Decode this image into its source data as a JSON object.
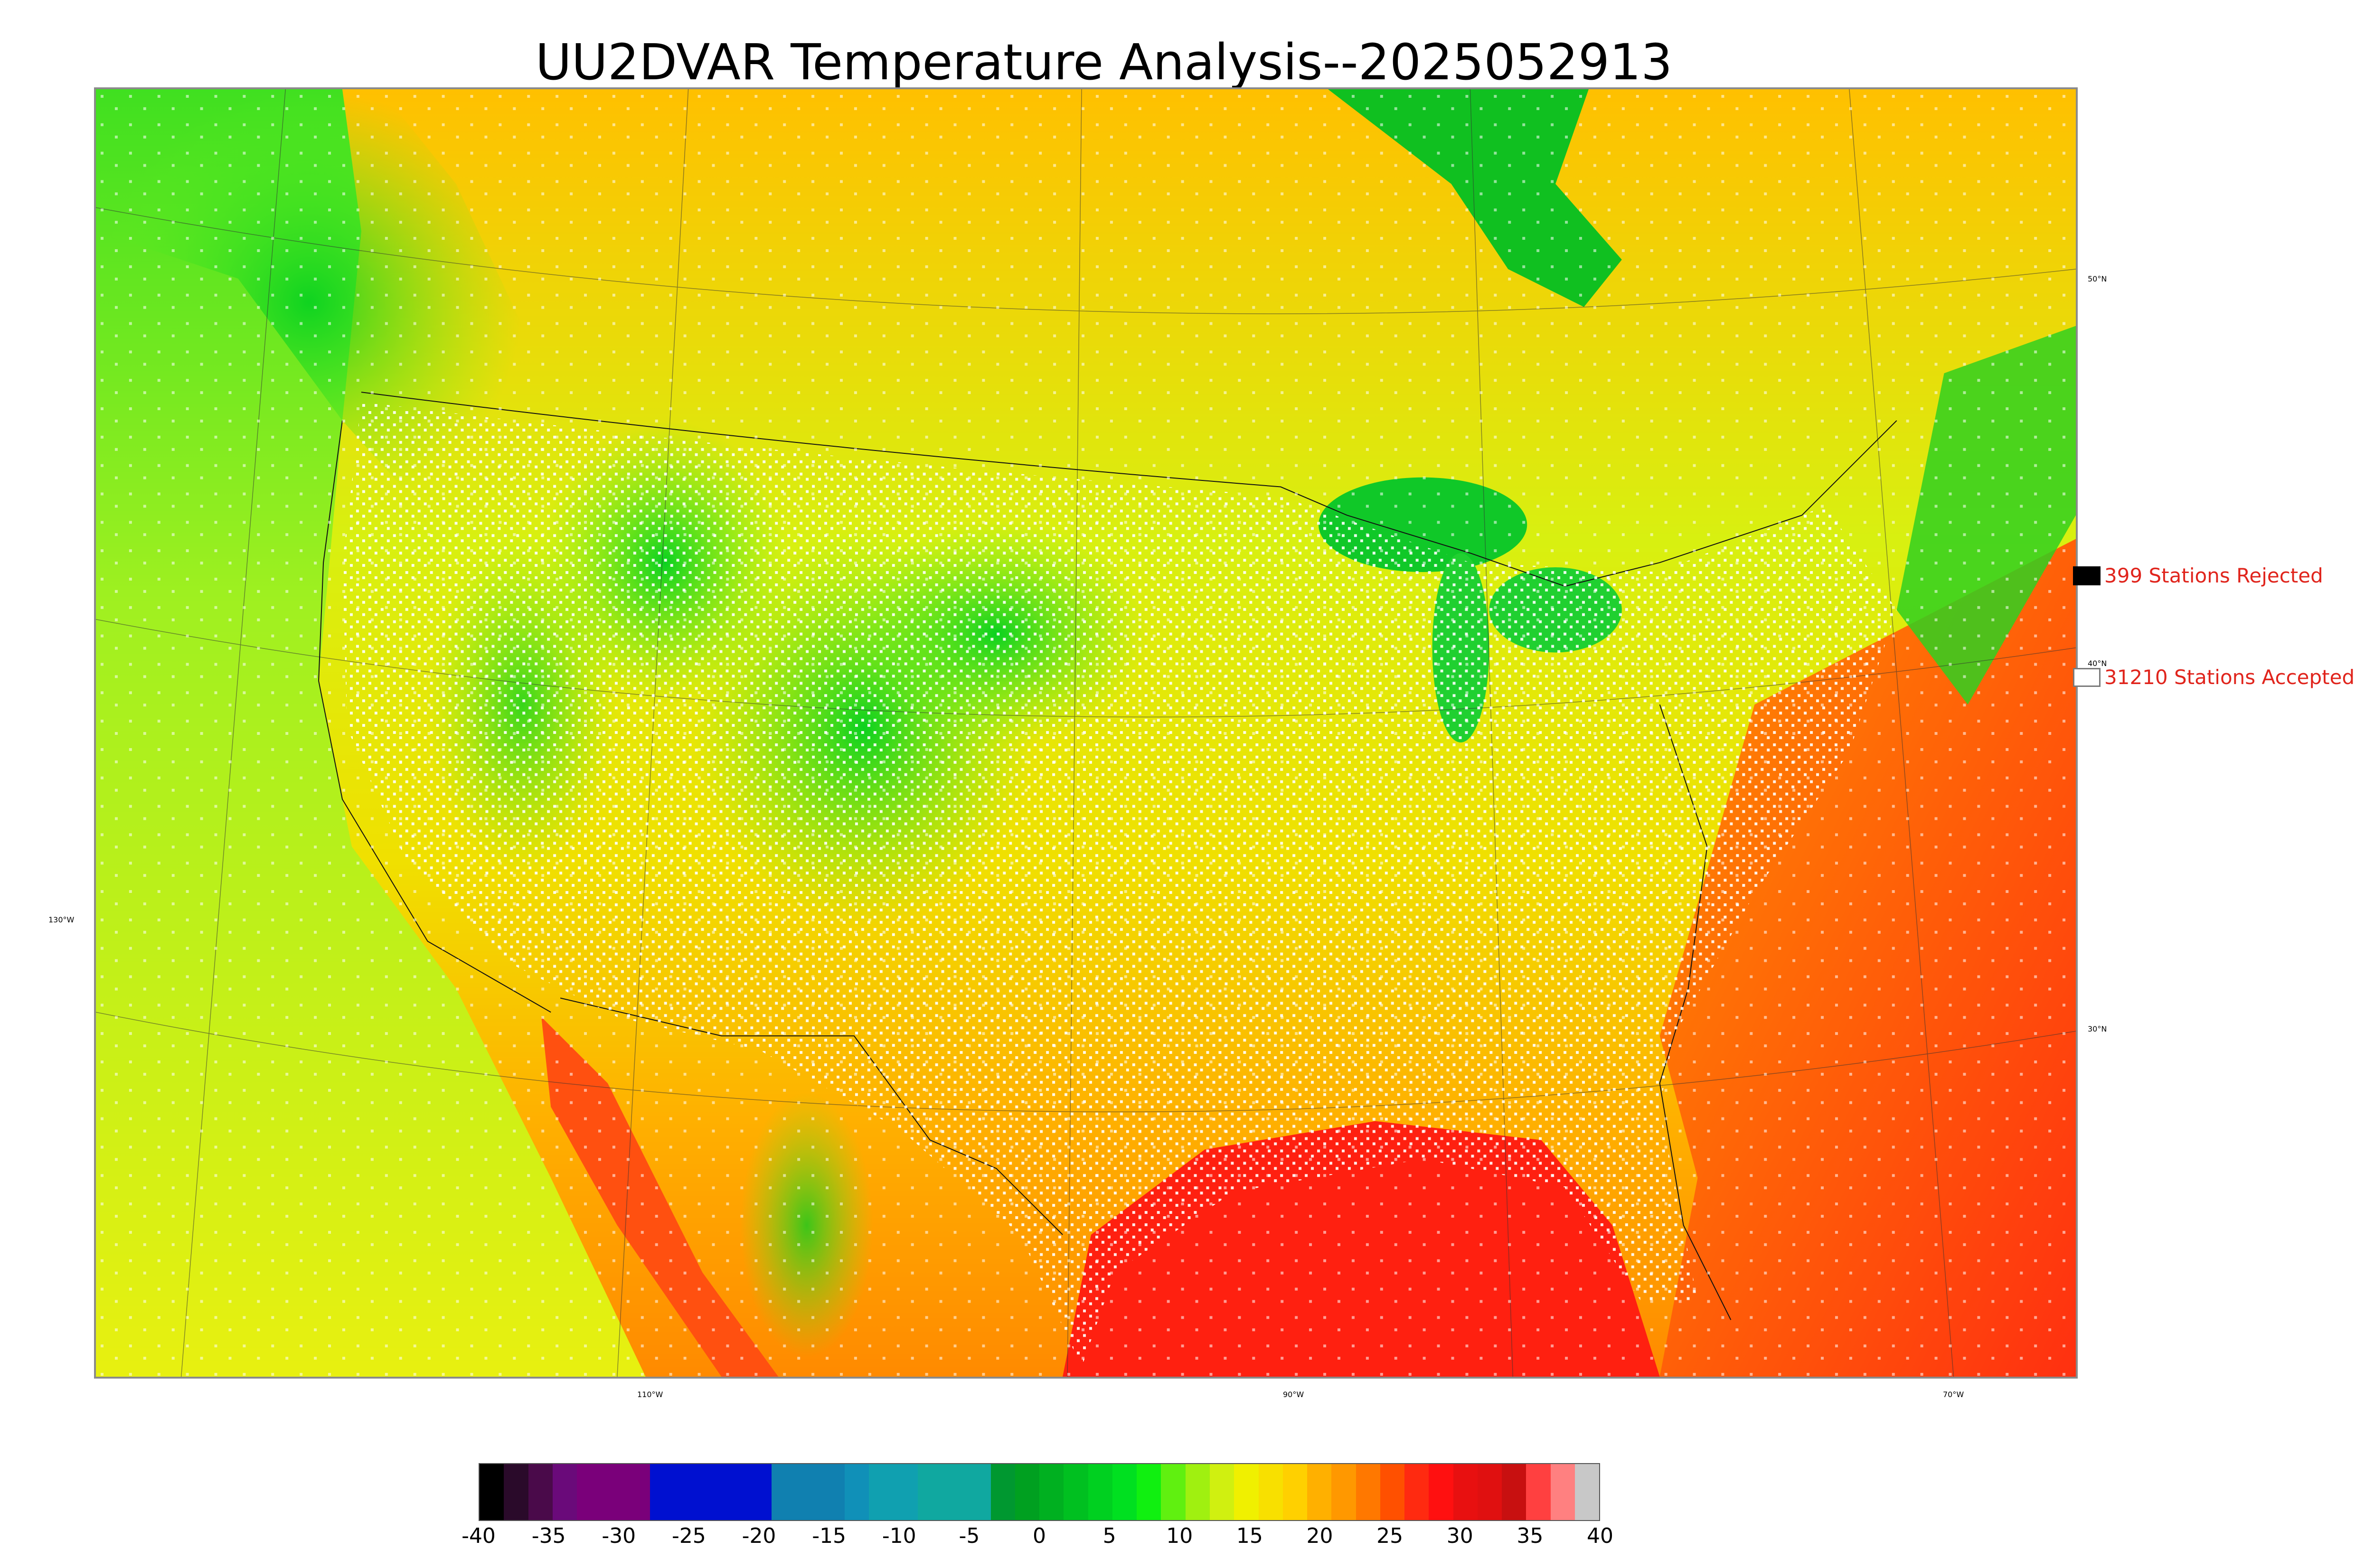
{
  "title": "UU2DVAR Temperature Analysis--2025052913",
  "legend": {
    "rejected_label": "399 Stations Rejected",
    "accepted_label": "31210 Stations Accepted",
    "label_color": "#e0241c"
  },
  "map": {
    "lat_labels": [
      "50°N",
      "40°N",
      "30°N"
    ],
    "lon_labels": [
      "130°W",
      "110°W",
      "90°W",
      "70°W"
    ],
    "ocean_gulf_color": "#ff2a10",
    "pacific_color": "#c8f020"
  },
  "colorbar": {
    "ticks": [
      "-40",
      "-35",
      "-30",
      "-25",
      "-20",
      "-15",
      "-10",
      "-5",
      "0",
      "5",
      "10",
      "15",
      "20",
      "25",
      "30",
      "35",
      "40"
    ],
    "colors": [
      "#000000",
      "#2a0a2a",
      "#4a0a4a",
      "#6a0a7a",
      "#7a007a",
      "#7a007a",
      "#7a007a",
      "#0010d0",
      "#0010d0",
      "#0010d0",
      "#0010d0",
      "#0010d0",
      "#1080b0",
      "#1080b0",
      "#1080b0",
      "#1090b8",
      "#10a0b0",
      "#10a0b0",
      "#10a8a0",
      "#10a8a0",
      "#10a8a0",
      "#009830",
      "#00a020",
      "#00b020",
      "#00c020",
      "#00d020",
      "#00e020",
      "#10f010",
      "#60f010",
      "#a0f010",
      "#d0f010",
      "#f0f000",
      "#f8e000",
      "#ffd000",
      "#ffb000",
      "#ff9800",
      "#ff7800",
      "#ff5000",
      "#ff2a10",
      "#ff1010",
      "#e81010",
      "#e01010",
      "#c81010",
      "#ff4040",
      "#ff8080",
      "#c8c8c8"
    ]
  }
}
